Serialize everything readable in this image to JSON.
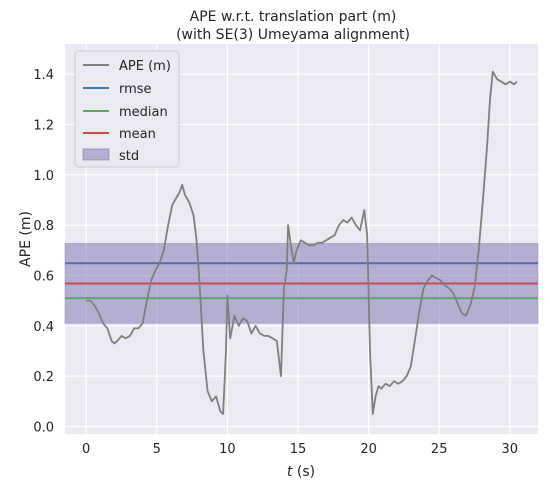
{
  "chart_data": {
    "type": "line",
    "title": "APE w.r.t. translation part (m)",
    "subtitle": "(with SE(3) Umeyama alignment)",
    "xlabel_var": "t",
    "xlabel_unit": "(s)",
    "ylabel": "APE (m)",
    "xlim": [
      -1.5,
      32.0
    ],
    "ylim": [
      -0.03,
      1.52
    ],
    "xticks": [
      0,
      5,
      10,
      15,
      20,
      25,
      30
    ],
    "yticks": [
      0.0,
      0.2,
      0.4,
      0.6,
      0.8,
      1.0,
      1.2,
      1.4
    ],
    "ytick_labels": [
      "0.0",
      "0.2",
      "0.4",
      "0.6",
      "0.8",
      "1.0",
      "1.2",
      "1.4"
    ],
    "grid": true,
    "legend_position": "top-left",
    "series": [
      {
        "name": "APE (m)",
        "color": "#7f7f7f",
        "x": [
          0,
          0.3,
          0.6,
          0.9,
          1.2,
          1.5,
          1.8,
          2.0,
          2.2,
          2.5,
          2.8,
          3.1,
          3.4,
          3.7,
          4.0,
          4.3,
          4.6,
          4.9,
          5.2,
          5.5,
          5.8,
          6.1,
          6.4,
          6.6,
          6.8,
          7.0,
          7.3,
          7.6,
          7.8,
          8.0,
          8.3,
          8.6,
          8.9,
          9.2,
          9.5,
          9.7,
          9.9,
          10.0,
          10.2,
          10.5,
          10.8,
          11.1,
          11.4,
          11.7,
          12.0,
          12.3,
          12.6,
          12.9,
          13.2,
          13.5,
          13.8,
          14.0,
          14.2,
          14.3,
          14.5,
          14.7,
          14.9,
          15.2,
          15.5,
          15.8,
          16.1,
          16.4,
          16.7,
          17.0,
          17.3,
          17.6,
          17.9,
          18.2,
          18.5,
          18.8,
          19.1,
          19.4,
          19.7,
          19.9,
          20.1,
          20.3,
          20.5,
          20.7,
          20.9,
          21.2,
          21.5,
          21.8,
          22.1,
          22.4,
          22.7,
          23.0,
          23.3,
          23.6,
          23.9,
          24.2,
          24.5,
          24.8,
          25.1,
          25.4,
          25.7,
          26.0,
          26.3,
          26.6,
          26.9,
          27.2,
          27.5,
          27.8,
          28.1,
          28.4,
          28.6,
          28.8,
          29.1,
          29.4,
          29.7,
          30.0,
          30.3,
          30.5
        ],
        "values": [
          0.5,
          0.5,
          0.48,
          0.45,
          0.41,
          0.39,
          0.34,
          0.33,
          0.34,
          0.36,
          0.35,
          0.36,
          0.39,
          0.39,
          0.41,
          0.5,
          0.58,
          0.62,
          0.65,
          0.7,
          0.8,
          0.88,
          0.91,
          0.93,
          0.96,
          0.92,
          0.89,
          0.84,
          0.75,
          0.6,
          0.3,
          0.14,
          0.1,
          0.12,
          0.06,
          0.05,
          0.3,
          0.52,
          0.35,
          0.44,
          0.4,
          0.43,
          0.42,
          0.37,
          0.4,
          0.37,
          0.36,
          0.36,
          0.35,
          0.34,
          0.2,
          0.55,
          0.62,
          0.8,
          0.72,
          0.65,
          0.7,
          0.74,
          0.73,
          0.72,
          0.72,
          0.73,
          0.73,
          0.74,
          0.75,
          0.76,
          0.8,
          0.82,
          0.81,
          0.83,
          0.8,
          0.78,
          0.86,
          0.76,
          0.3,
          0.05,
          0.12,
          0.16,
          0.15,
          0.17,
          0.16,
          0.18,
          0.17,
          0.18,
          0.2,
          0.24,
          0.35,
          0.46,
          0.55,
          0.58,
          0.6,
          0.59,
          0.58,
          0.56,
          0.55,
          0.53,
          0.49,
          0.45,
          0.44,
          0.48,
          0.55,
          0.7,
          0.9,
          1.12,
          1.3,
          1.41,
          1.38,
          1.37,
          1.36,
          1.37,
          1.36,
          1.37
        ]
      },
      {
        "name": "rmse",
        "color": "#4c72b0",
        "value": 0.649
      },
      {
        "name": "median",
        "color": "#55a868",
        "value": 0.51
      },
      {
        "name": "mean",
        "color": "#c44e52",
        "value": 0.568
      },
      {
        "name": "std",
        "color": "#8172b2",
        "band": [
          0.41,
          0.727
        ]
      }
    ]
  }
}
